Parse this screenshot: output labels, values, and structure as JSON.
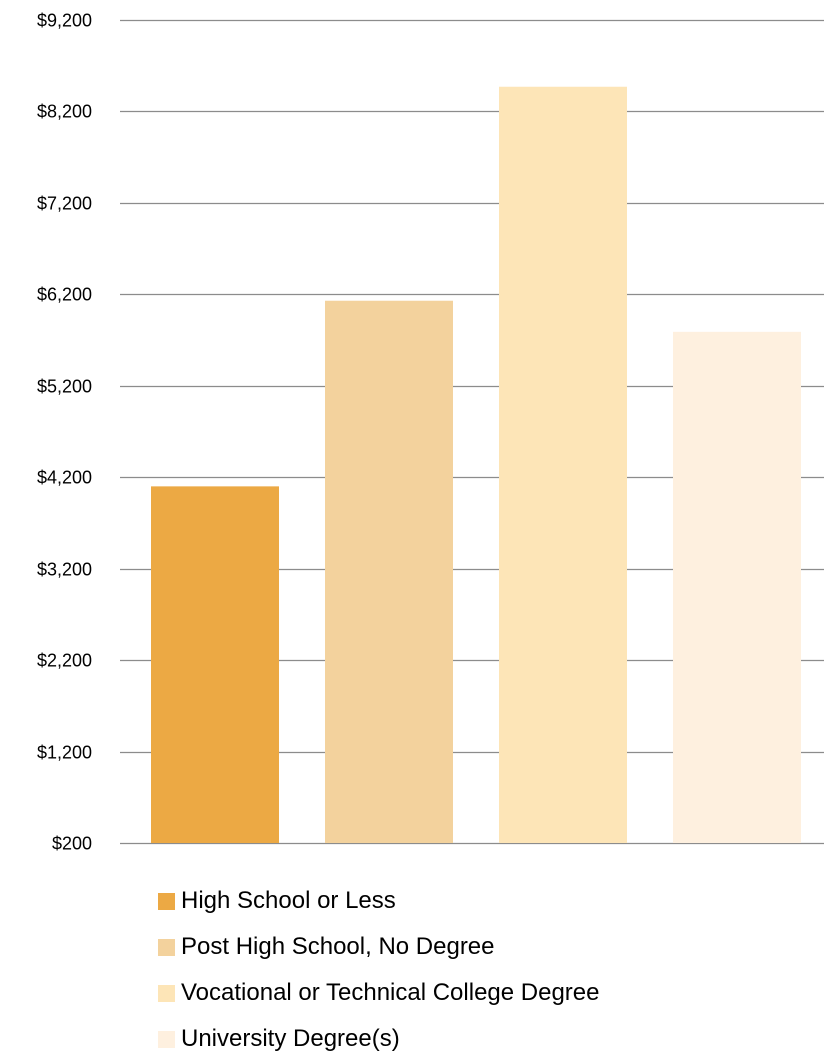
{
  "chart_data": {
    "type": "bar",
    "title": "",
    "xlabel": "",
    "ylabel": "",
    "categories": [
      "High School or Less",
      "Post High School, No Degree",
      "Vocational or Technical College Degree",
      "University Degree(s)"
    ],
    "values": [
      4100,
      6130,
      8470,
      5790
    ],
    "colors": [
      "#ECA944",
      "#F3D29D",
      "#FDE5B7",
      "#FEF0DF"
    ],
    "ylim": [
      200,
      9200
    ],
    "yticks": [
      200,
      1200,
      2200,
      3200,
      4200,
      5200,
      6200,
      7200,
      8200,
      9200
    ],
    "ytick_labels": [
      "$200",
      "$1,200",
      "$2,200",
      "$3,200",
      "$4,200",
      "$5,200",
      "$6,200",
      "$7,200",
      "$8,200",
      "$9,200"
    ],
    "grid": true,
    "gridline_color": "#8C8C8C",
    "legend_position": "bottom",
    "legend": [
      "High School or Less",
      "Post High School, No Degree",
      "Vocational or Technical College Degree",
      "University Degree(s)"
    ]
  }
}
